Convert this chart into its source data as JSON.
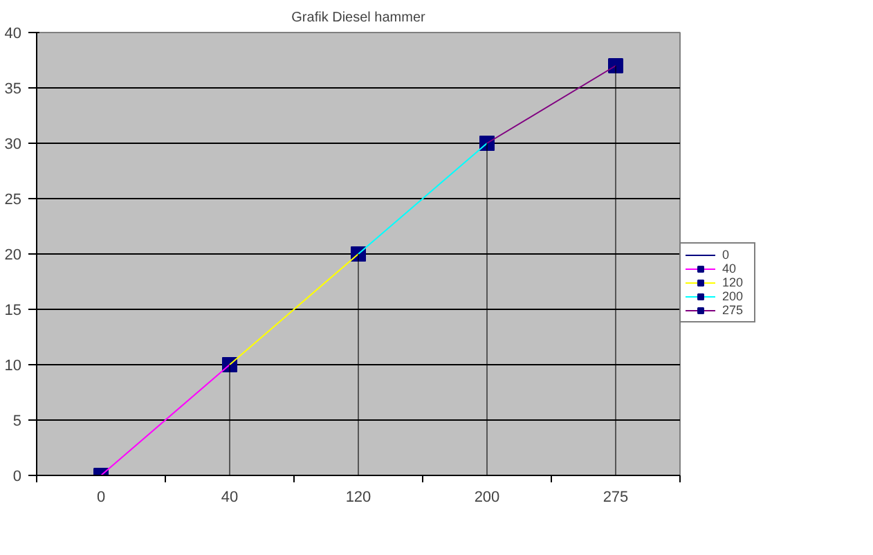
{
  "chart_data": {
    "type": "line",
    "title": "Grafik Diesel hammer",
    "categories": [
      "0",
      "40",
      "120",
      "200",
      "275"
    ],
    "series": [
      {
        "type": "bar",
        "color": "#000000",
        "values": [
          0,
          10,
          20,
          30,
          37
        ]
      },
      {
        "name": "0",
        "color": "#000080",
        "values": [
          null,
          null,
          null,
          null,
          null
        ]
      },
      {
        "name": "40",
        "color": "#ff00ff",
        "values": [
          0,
          10,
          null,
          null,
          null
        ]
      },
      {
        "name": "120",
        "color": "#ffff00",
        "values": [
          null,
          10,
          20,
          null,
          null
        ]
      },
      {
        "name": "200",
        "color": "#00ffff",
        "values": [
          null,
          null,
          20,
          30,
          null
        ]
      },
      {
        "name": "275",
        "color": "#800080",
        "values": [
          null,
          null,
          null,
          30,
          37
        ]
      }
    ],
    "ylim": [
      0,
      40
    ],
    "yticks": [
      0,
      5,
      10,
      15,
      20,
      25,
      30,
      35,
      40
    ],
    "grid": "y",
    "legend": "right",
    "marker": "square",
    "line_style": "solid"
  }
}
